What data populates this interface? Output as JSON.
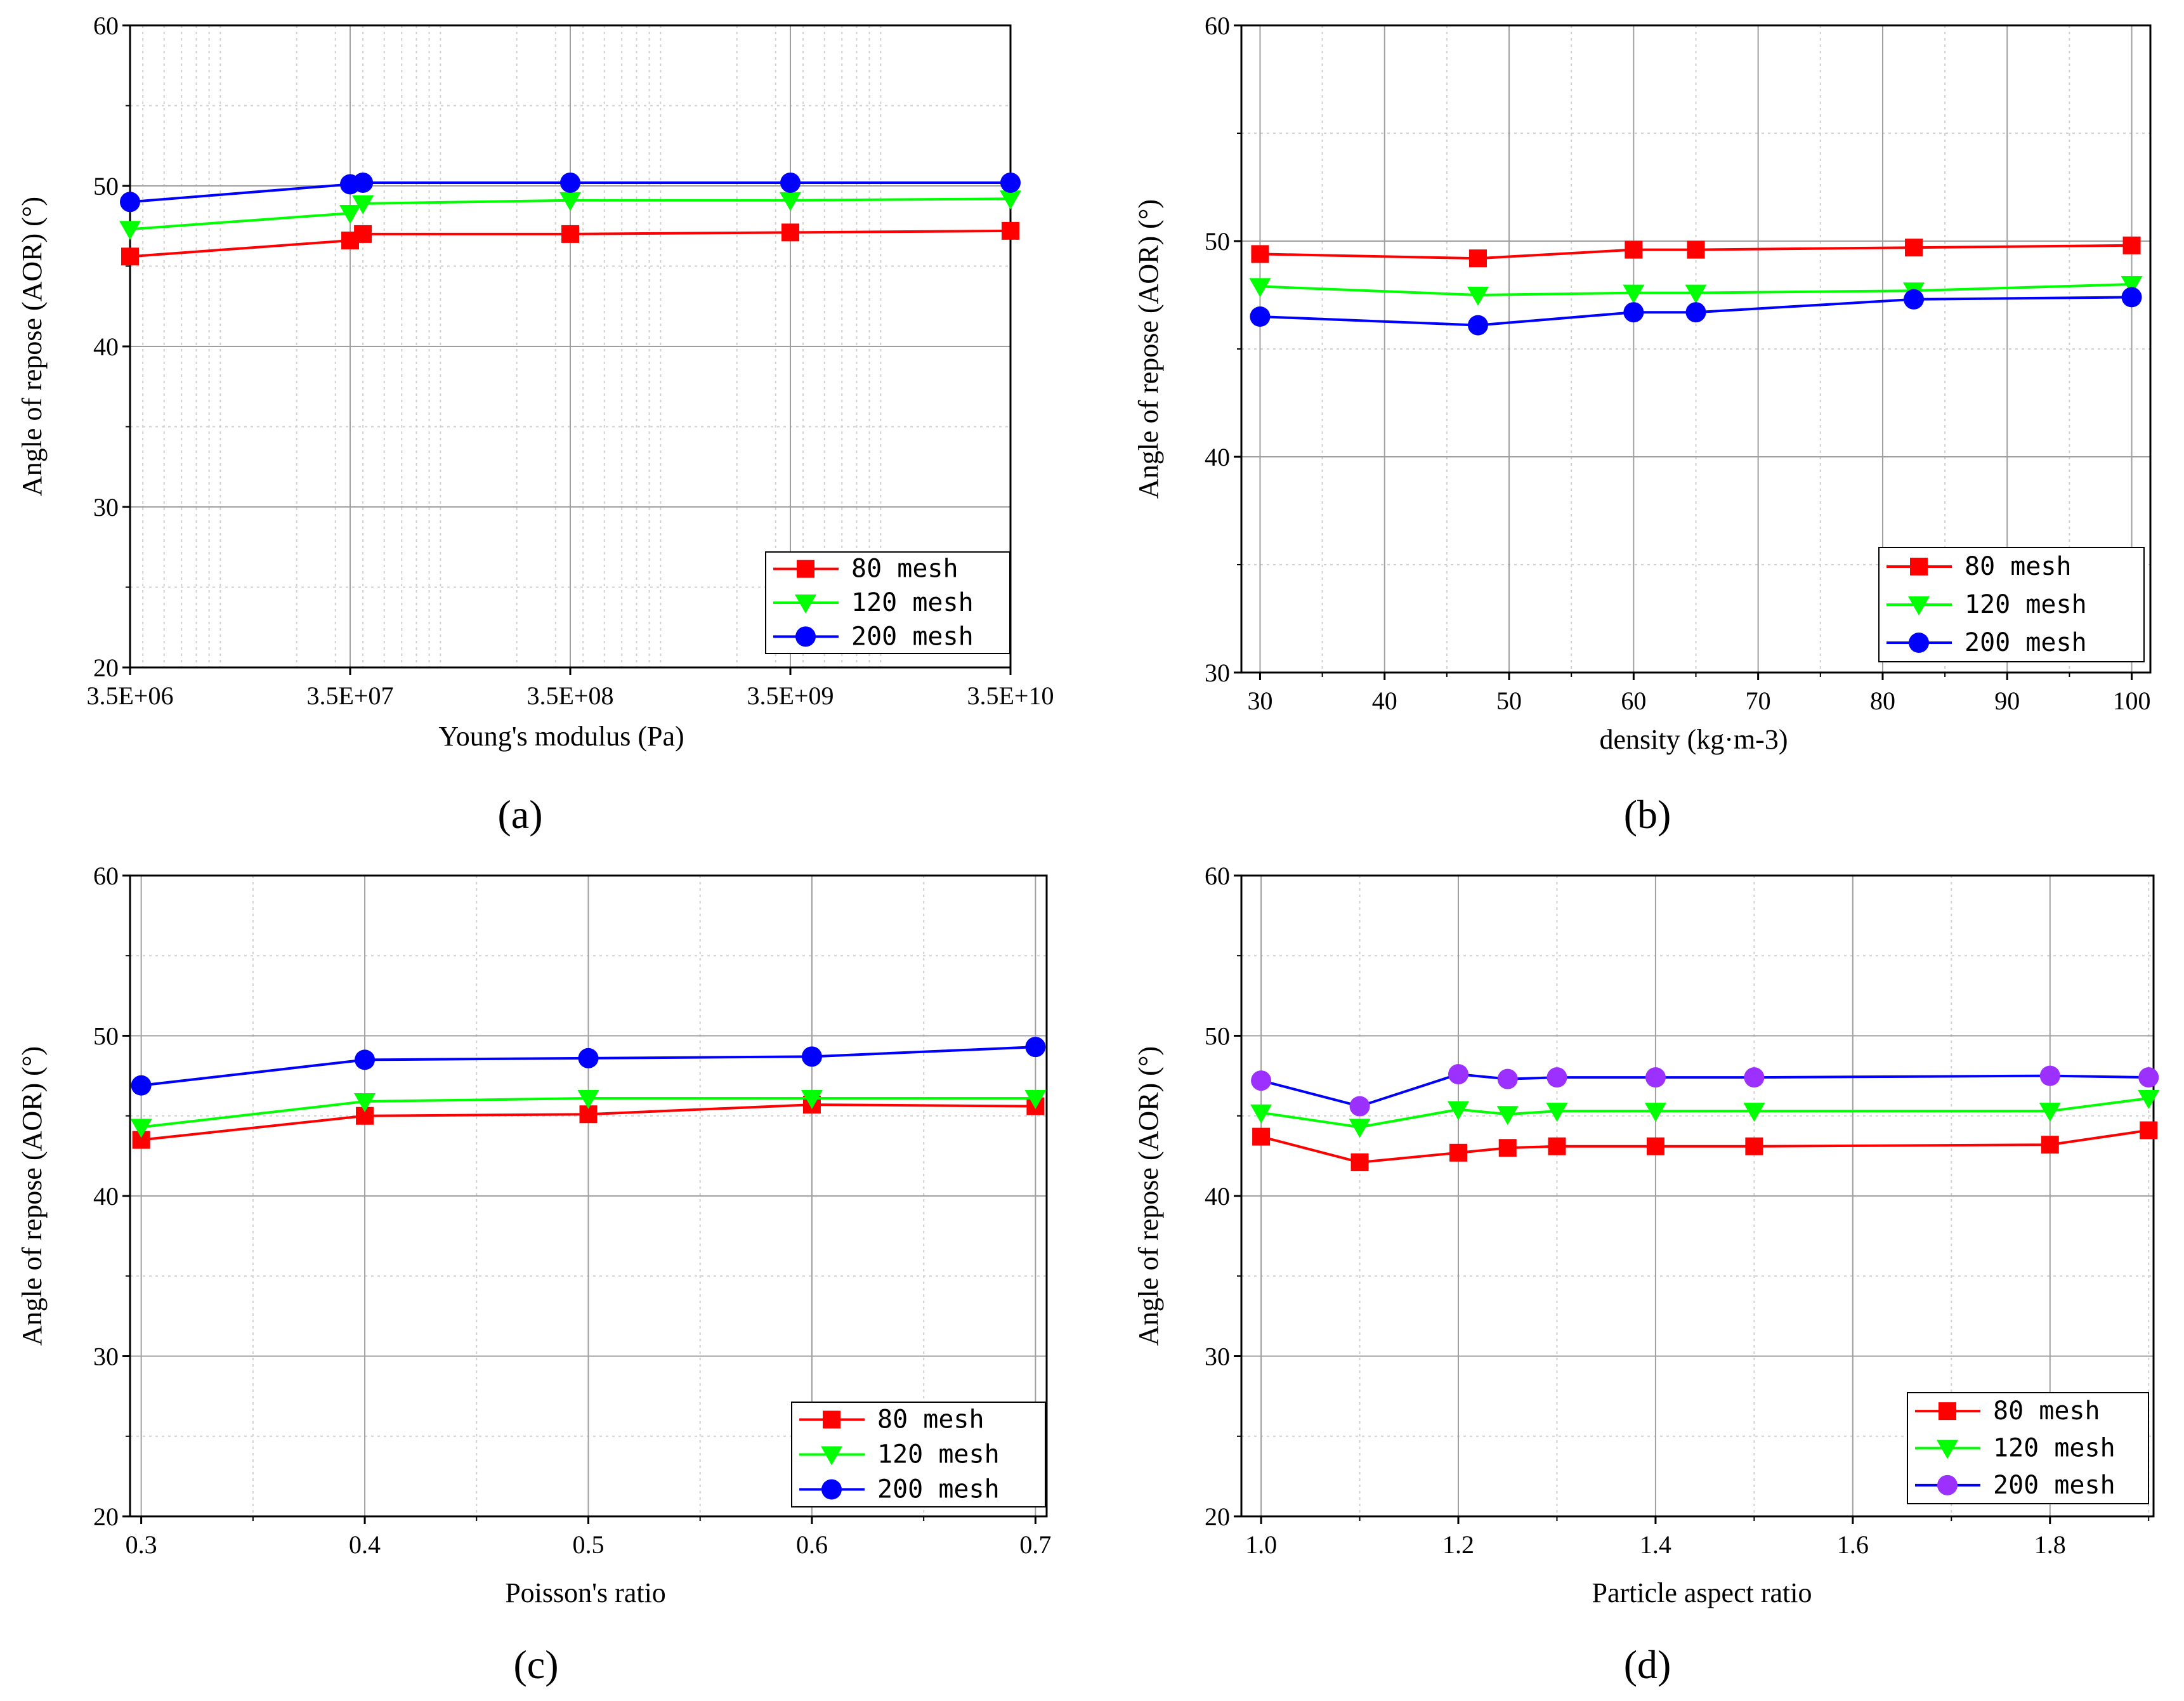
{
  "colors": {
    "red": "#ff0000",
    "green": "#00ff00",
    "blue": "#0000ff",
    "purple": "#9b30ff",
    "grid": "#a0a0a0"
  },
  "chart_data": [
    {
      "id": "a",
      "type": "line",
      "panel_label": "(a)",
      "xlabel": "Young's modulus (Pa)",
      "ylabel": "Angle of repose (AOR) (°)",
      "xscale": "log",
      "xlim": [
        3500000.0,
        35000000000.0
      ],
      "ylim": [
        20,
        60
      ],
      "xticks": [
        3500000.0,
        35000000.0,
        350000000.0,
        3500000000.0,
        35000000000.0
      ],
      "xtick_labels": [
        "3.5E+06",
        "3.5E+07",
        "3.5E+08",
        "3.5E+09",
        "3.5E+10"
      ],
      "yticks": [
        20,
        30,
        40,
        50,
        60
      ],
      "ytick_labels": [
        "20",
        "30",
        "40",
        "50",
        "60"
      ],
      "grid": true,
      "legend_position": "bottom-right",
      "series": [
        {
          "name": "80 mesh",
          "color": "#ff0000",
          "marker": "square",
          "x": [
            3500000.0,
            35000000.0,
            40000000.0,
            350000000.0,
            3500000000.0,
            35000000000.0
          ],
          "y": [
            45.6,
            46.6,
            47.0,
            47.0,
            47.1,
            47.2
          ]
        },
        {
          "name": "120 mesh",
          "color": "#00ff00",
          "marker": "triangle-down",
          "x": [
            3500000.0,
            35000000.0,
            40000000.0,
            350000000.0,
            3500000000.0,
            35000000000.0
          ],
          "y": [
            47.3,
            48.3,
            48.9,
            49.1,
            49.1,
            49.2
          ]
        },
        {
          "name": "200 mesh",
          "color": "#0000ff",
          "marker": "circle",
          "x": [
            3500000.0,
            35000000.0,
            40000000.0,
            350000000.0,
            3500000000.0,
            35000000000.0
          ],
          "y": [
            49.0,
            50.1,
            50.2,
            50.2,
            50.2,
            50.2
          ]
        }
      ]
    },
    {
      "id": "b",
      "type": "line",
      "panel_label": "(b)",
      "xlabel": "density (kg·m-3)",
      "ylabel": "Angle of repose (AOR) (°)",
      "xscale": "linear",
      "xlim": [
        28.5,
        101.5
      ],
      "ylim": [
        30,
        60
      ],
      "xticks": [
        30,
        40,
        50,
        60,
        70,
        80,
        90,
        100
      ],
      "xtick_labels": [
        "30",
        "40",
        "50",
        "60",
        "70",
        "80",
        "90",
        "100"
      ],
      "yticks": [
        30,
        40,
        50,
        60
      ],
      "ytick_labels": [
        "30",
        "40",
        "50",
        "60"
      ],
      "grid": true,
      "legend_position": "bottom-right",
      "series": [
        {
          "name": "80 mesh",
          "color": "#ff0000",
          "marker": "square",
          "x": [
            30,
            47.5,
            60,
            65,
            82.5,
            100
          ],
          "y": [
            49.4,
            49.2,
            49.6,
            49.6,
            49.7,
            49.8
          ]
        },
        {
          "name": "120 mesh",
          "color": "#00ff00",
          "marker": "triangle-down",
          "x": [
            30,
            47.5,
            60,
            65,
            82.5,
            100
          ],
          "y": [
            47.9,
            47.5,
            47.6,
            47.6,
            47.7,
            48.0
          ]
        },
        {
          "name": "200 mesh",
          "color": "#0000ff",
          "marker": "circle",
          "x": [
            30,
            47.5,
            60,
            65,
            82.5,
            100
          ],
          "y": [
            46.5,
            46.1,
            46.7,
            46.7,
            47.3,
            47.4
          ]
        }
      ]
    },
    {
      "id": "c",
      "type": "line",
      "panel_label": "(c)",
      "xlabel": "Poisson's ratio",
      "ylabel": "Angle of repose (AOR) (°)",
      "xscale": "linear",
      "xlim": [
        0.295,
        0.705
      ],
      "ylim": [
        20,
        60
      ],
      "xticks": [
        0.3,
        0.4,
        0.5,
        0.6,
        0.7
      ],
      "xtick_labels": [
        "0.3",
        "0.4",
        "0.5",
        "0.6",
        "0.7"
      ],
      "yticks": [
        20,
        30,
        40,
        50,
        60
      ],
      "ytick_labels": [
        "20",
        "30",
        "40",
        "50",
        "60"
      ],
      "grid": true,
      "legend_position": "bottom-right",
      "series": [
        {
          "name": "80 mesh",
          "color": "#ff0000",
          "marker": "square",
          "x": [
            0.3,
            0.4,
            0.5,
            0.6,
            0.7
          ],
          "y": [
            43.5,
            45.0,
            45.1,
            45.7,
            45.6
          ]
        },
        {
          "name": "120 mesh",
          "color": "#00ff00",
          "marker": "triangle-down",
          "x": [
            0.3,
            0.4,
            0.5,
            0.6,
            0.7
          ],
          "y": [
            44.3,
            45.9,
            46.1,
            46.1,
            46.1
          ]
        },
        {
          "name": "200 mesh",
          "color": "#0000ff",
          "marker": "circle",
          "x": [
            0.3,
            0.4,
            0.5,
            0.6,
            0.7
          ],
          "y": [
            46.9,
            48.5,
            48.6,
            48.7,
            49.3
          ]
        }
      ]
    },
    {
      "id": "d",
      "type": "line",
      "panel_label": "(d)",
      "xlabel": "Particle aspect ratio",
      "ylabel": "Angle of repose (AOR) (°)",
      "xscale": "linear",
      "xlim": [
        0.98,
        1.905
      ],
      "ylim": [
        20,
        60
      ],
      "xticks": [
        1.0,
        1.2,
        1.4,
        1.6,
        1.8
      ],
      "xtick_labels": [
        "1.0",
        "1.2",
        "1.4",
        "1.6",
        "1.8"
      ],
      "yticks": [
        20,
        30,
        40,
        50,
        60
      ],
      "ytick_labels": [
        "20",
        "30",
        "40",
        "50",
        "60"
      ],
      "grid": true,
      "legend_position": "bottom-right",
      "series": [
        {
          "name": "80 mesh",
          "color": "#ff0000",
          "marker": "square",
          "x": [
            1.0,
            1.1,
            1.2,
            1.25,
            1.3,
            1.4,
            1.5,
            1.8,
            1.9
          ],
          "y": [
            43.7,
            42.1,
            42.7,
            43.0,
            43.1,
            43.1,
            43.1,
            43.2,
            44.1
          ]
        },
        {
          "name": "120 mesh",
          "color": "#00ff00",
          "marker": "triangle-down",
          "x": [
            1.0,
            1.1,
            1.2,
            1.25,
            1.3,
            1.4,
            1.5,
            1.8,
            1.9
          ],
          "y": [
            45.2,
            44.3,
            45.4,
            45.1,
            45.3,
            45.3,
            45.3,
            45.3,
            46.1
          ]
        },
        {
          "name": "200 mesh",
          "color": "#0000ff",
          "marker": "circle",
          "marker_color": "#9b30ff",
          "x": [
            1.0,
            1.1,
            1.2,
            1.25,
            1.3,
            1.4,
            1.5,
            1.8,
            1.9
          ],
          "y": [
            47.2,
            45.6,
            47.6,
            47.3,
            47.4,
            47.4,
            47.4,
            47.5,
            47.4
          ]
        }
      ]
    }
  ]
}
